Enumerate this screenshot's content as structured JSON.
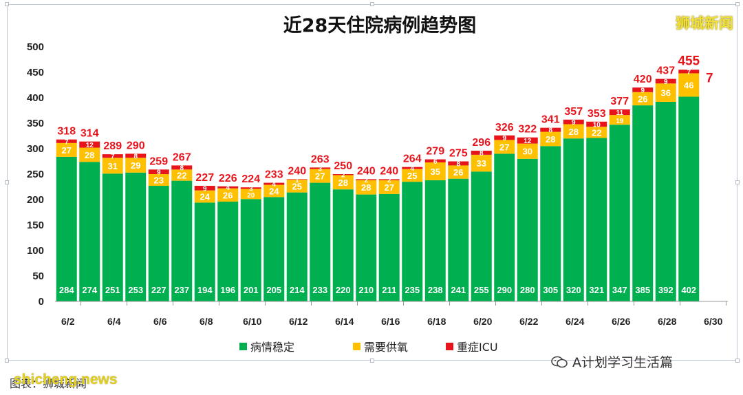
{
  "chart_data": {
    "type": "bar",
    "stacked": true,
    "title": "近28天住院病例趋势图",
    "ylim": [
      0,
      500
    ],
    "yticks": [
      0,
      50,
      100,
      150,
      200,
      250,
      300,
      350,
      400,
      450,
      500
    ],
    "x_tick_labels": [
      "6/2",
      "6/4",
      "6/6",
      "6/8",
      "6/10",
      "6/12",
      "6/14",
      "6/16",
      "6/18",
      "6/20",
      "6/22",
      "6/24",
      "6/26",
      "6/28",
      "6/30"
    ],
    "categories": [
      "6/2",
      "6/3",
      "6/4",
      "6/5",
      "6/6",
      "6/7",
      "6/8",
      "6/9",
      "6/10",
      "6/11",
      "6/12",
      "6/13",
      "6/14",
      "6/15",
      "6/16",
      "6/17",
      "6/18",
      "6/19",
      "6/20",
      "6/21",
      "6/22",
      "6/23",
      "6/24",
      "6/25",
      "6/26",
      "6/27",
      "6/28",
      "6/29"
    ],
    "series": [
      {
        "name": "病情稳定",
        "color": "#00b050",
        "values": [
          284,
          274,
          251,
          253,
          227,
          237,
          194,
          196,
          201,
          205,
          214,
          233,
          220,
          210,
          211,
          235,
          238,
          241,
          255,
          290,
          280,
          305,
          320,
          321,
          347,
          385,
          392,
          402
        ]
      },
      {
        "name": "需要供氧",
        "color": "#ffc000",
        "values": [
          27,
          28,
          31,
          29,
          23,
          22,
          24,
          26,
          20,
          24,
          25,
          27,
          28,
          28,
          27,
          25,
          35,
          26,
          33,
          27,
          30,
          28,
          28,
          22,
          19,
          26,
          36,
          46
        ]
      },
      {
        "name": "重症ICU",
        "color": "#e8141c",
        "values": [
          7,
          12,
          7,
          8,
          9,
          8,
          9,
          4,
          3,
          4,
          1,
          3,
          2,
          2,
          2,
          4,
          6,
          8,
          8,
          9,
          12,
          8,
          9,
          10,
          11,
          9,
          9,
          7
        ]
      }
    ],
    "totals": [
      318,
      314,
      289,
      290,
      259,
      267,
      227,
      226,
      224,
      233,
      240,
      263,
      250,
      240,
      240,
      264,
      279,
      275,
      296,
      326,
      322,
      341,
      357,
      353,
      377,
      420,
      437,
      455
    ],
    "legend_position": "bottom",
    "grid": false
  },
  "brand": "狮城新闻",
  "watermark": "A计划学习生活篇",
  "source_label": "图表：狮城新闻",
  "source_site": "shicheng.news"
}
